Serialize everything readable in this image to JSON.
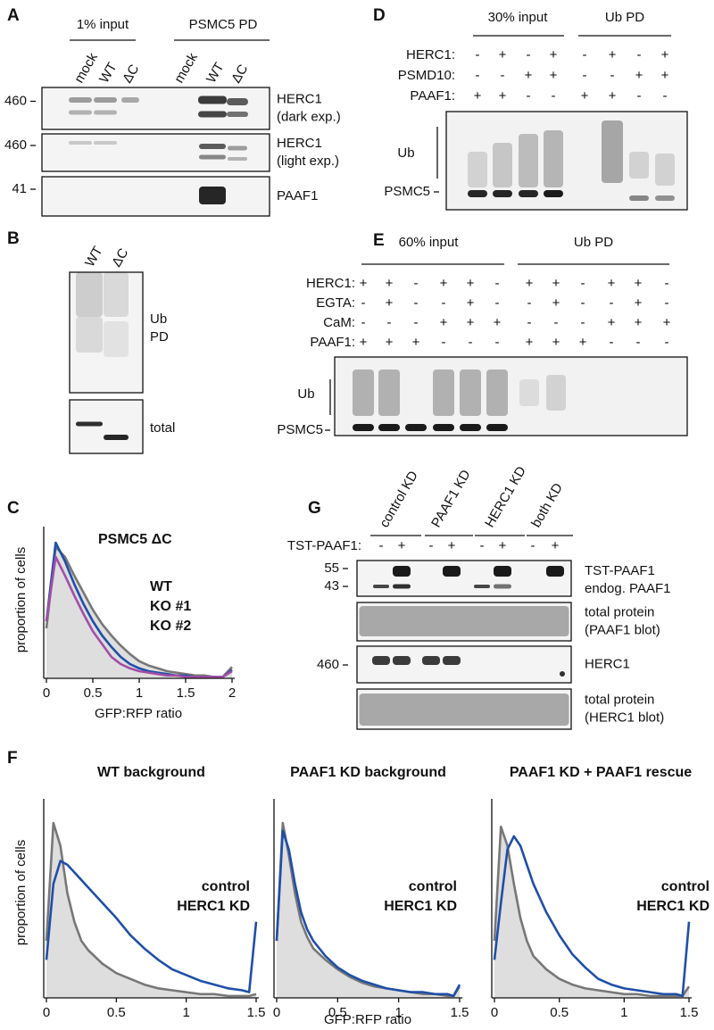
{
  "panels": {
    "A": {
      "letter": "A",
      "groups": [
        "1% input",
        "PSMC5 PD"
      ],
      "lanes": [
        "mock",
        "WT",
        "ΔC",
        "mock",
        "WT",
        "ΔC"
      ],
      "blots": [
        {
          "marker": "460",
          "label": [
            "HERC1",
            "(dark exp.)"
          ]
        },
        {
          "marker": "460",
          "label": [
            "HERC1",
            "(light exp.)"
          ]
        },
        {
          "marker": "41",
          "label": [
            "PAAF1"
          ]
        }
      ]
    },
    "B": {
      "letter": "B",
      "lanes": [
        "WT",
        "ΔC"
      ],
      "blots": [
        {
          "label": [
            "Ub",
            "PD"
          ]
        },
        {
          "label": [
            "total"
          ]
        }
      ]
    },
    "D": {
      "letter": "D",
      "groups": [
        "30% input",
        "Ub PD"
      ],
      "rows": [
        {
          "label": "HERC1:",
          "signs": [
            "-",
            "+",
            "-",
            "+",
            "-",
            "+",
            "-",
            "+"
          ]
        },
        {
          "label": "PSMD10:",
          "signs": [
            "-",
            "-",
            "+",
            "+",
            "-",
            "-",
            "+",
            "+"
          ]
        },
        {
          "label": "PAAF1:",
          "signs": [
            "+",
            "+",
            "-",
            "-",
            "+",
            "+",
            "-",
            "-"
          ]
        }
      ],
      "bands": [
        "Ub",
        "PSMC5"
      ]
    },
    "E": {
      "letter": "E",
      "groups": [
        "60% input",
        "Ub PD"
      ],
      "rows": [
        {
          "label": "HERC1:",
          "signs": [
            "+",
            "+",
            "-",
            "+",
            "+",
            "-",
            "+",
            "+",
            "-",
            "+",
            "+",
            "-"
          ]
        },
        {
          "label": "EGTA:",
          "signs": [
            "-",
            "+",
            "-",
            "-",
            "+",
            "-",
            "-",
            "+",
            "-",
            "-",
            "+",
            "-"
          ]
        },
        {
          "label": "CaM:",
          "signs": [
            "-",
            "-",
            "-",
            "+",
            "+",
            "+",
            "-",
            "-",
            "-",
            "+",
            "+",
            "+"
          ]
        },
        {
          "label": "PAAF1:",
          "signs": [
            "+",
            "+",
            "+",
            "-",
            "-",
            "-",
            "+",
            "+",
            "+",
            "-",
            "-",
            "-"
          ]
        }
      ],
      "bands": [
        "Ub",
        "PSMC5"
      ]
    },
    "F": {
      "letter": "F",
      "y_label": "proportion of cells",
      "x_label": "GFP:RFP ratio"
    },
    "G": {
      "letter": "G",
      "groups": [
        "control KD",
        "PAAF1 KD",
        "HERC1 KD",
        "both KD"
      ],
      "rows": [
        {
          "label": "TST-PAAF1:",
          "signs": [
            "-",
            "+",
            "-",
            "+",
            "-",
            "+",
            "-",
            "+"
          ]
        }
      ],
      "blots": [
        {
          "markers": [
            "55",
            "43"
          ],
          "label": [
            "TST-PAAF1",
            "endog. PAAF1"
          ]
        },
        {
          "markers": [],
          "label": [
            "total protein",
            "(PAAF1 blot)"
          ]
        },
        {
          "markers": [
            "460"
          ],
          "label": [
            "HERC1"
          ]
        },
        {
          "markers": [],
          "label": [
            "total protein",
            "(HERC1 blot)"
          ]
        }
      ]
    }
  },
  "chart_data": [
    {
      "type": "histogram-line",
      "letter": "C",
      "title": "PSMC5 ΔC",
      "x_label": "GFP:RFP ratio",
      "y_label": "proportion of cells",
      "x": [
        0,
        0.1,
        0.2,
        0.3,
        0.4,
        0.5,
        0.6,
        0.7,
        0.8,
        0.9,
        1.0,
        1.1,
        1.2,
        1.3,
        1.4,
        1.5,
        1.6,
        1.7,
        1.8,
        1.9,
        2
      ],
      "xlim": [
        0,
        2
      ],
      "ylim": [
        0,
        1
      ],
      "xticks": [
        0,
        0.5,
        1,
        1.5,
        2
      ],
      "series": [
        {
          "name": "WT",
          "color": "#777777",
          "fill": "#dedede",
          "values": [
            0.35,
            0.92,
            0.85,
            0.72,
            0.6,
            0.48,
            0.38,
            0.3,
            0.23,
            0.17,
            0.12,
            0.09,
            0.07,
            0.05,
            0.04,
            0.03,
            0.02,
            0.02,
            0.01,
            0.01,
            0.08
          ]
        },
        {
          "name": "KO #1",
          "color": "#1f4fa8",
          "values": [
            0.4,
            0.95,
            0.82,
            0.66,
            0.52,
            0.4,
            0.3,
            0.22,
            0.15,
            0.1,
            0.07,
            0.05,
            0.04,
            0.03,
            0.02,
            0.02,
            0.01,
            0.01,
            0.01,
            0.01,
            0.06
          ]
        },
        {
          "name": "KO #2",
          "color": "#a24ea6",
          "values": [
            0.4,
            0.85,
            0.72,
            0.58,
            0.45,
            0.33,
            0.24,
            0.15,
            0.1,
            0.07,
            0.05,
            0.04,
            0.03,
            0.02,
            0.02,
            0.01,
            0.01,
            0.01,
            0.01,
            0.01,
            0.05
          ]
        }
      ]
    },
    {
      "type": "histogram-line",
      "title": "WT background",
      "x": [
        0,
        0.05,
        0.1,
        0.15,
        0.2,
        0.25,
        0.3,
        0.4,
        0.5,
        0.6,
        0.7,
        0.8,
        0.9,
        1.0,
        1.1,
        1.2,
        1.3,
        1.4,
        1.45,
        1.5
      ],
      "xlim": [
        0,
        1.5
      ],
      "ylim": [
        0,
        1
      ],
      "xticks": [
        0,
        0.5,
        1,
        1.5
      ],
      "series": [
        {
          "name": "control",
          "color": "#777777",
          "fill": "#dedede",
          "values": [
            0.3,
            0.92,
            0.8,
            0.55,
            0.4,
            0.3,
            0.25,
            0.18,
            0.13,
            0.1,
            0.07,
            0.05,
            0.04,
            0.03,
            0.02,
            0.02,
            0.01,
            0.01,
            0.01,
            0.02
          ]
        },
        {
          "name": "HERC1 KD",
          "color": "#1f4fa8",
          "values": [
            0.2,
            0.6,
            0.72,
            0.7,
            0.66,
            0.62,
            0.58,
            0.5,
            0.42,
            0.33,
            0.26,
            0.2,
            0.15,
            0.12,
            0.09,
            0.07,
            0.05,
            0.04,
            0.03,
            0.4
          ]
        }
      ]
    },
    {
      "type": "histogram-line",
      "title": "PAAF1 KD background",
      "x": [
        0,
        0.05,
        0.1,
        0.15,
        0.2,
        0.25,
        0.3,
        0.4,
        0.5,
        0.6,
        0.7,
        0.8,
        0.9,
        1.0,
        1.1,
        1.2,
        1.3,
        1.4,
        1.45,
        1.5
      ],
      "xlim": [
        0,
        1.5
      ],
      "ylim": [
        0,
        1
      ],
      "xticks": [
        0,
        0.5,
        1,
        1.5
      ],
      "series": [
        {
          "name": "control",
          "color": "#777777",
          "fill": "#dedede",
          "values": [
            0.3,
            0.92,
            0.75,
            0.55,
            0.4,
            0.32,
            0.26,
            0.2,
            0.15,
            0.11,
            0.08,
            0.06,
            0.05,
            0.04,
            0.03,
            0.02,
            0.02,
            0.01,
            0.01,
            0.06
          ]
        },
        {
          "name": "HERC1 KD",
          "color": "#1f4fa8",
          "values": [
            0.3,
            0.88,
            0.78,
            0.6,
            0.45,
            0.36,
            0.3,
            0.22,
            0.16,
            0.12,
            0.09,
            0.07,
            0.05,
            0.04,
            0.03,
            0.03,
            0.02,
            0.02,
            0.01,
            0.07
          ]
        }
      ]
    },
    {
      "type": "histogram-line",
      "title": "PAAF1 KD + PAAF1 rescue",
      "x": [
        0,
        0.05,
        0.1,
        0.15,
        0.2,
        0.25,
        0.3,
        0.4,
        0.5,
        0.6,
        0.7,
        0.8,
        0.9,
        1.0,
        1.1,
        1.2,
        1.3,
        1.4,
        1.45,
        1.5
      ],
      "xlim": [
        0,
        1.5
      ],
      "ylim": [
        0,
        1
      ],
      "xticks": [
        0,
        0.5,
        1,
        1.5
      ],
      "series": [
        {
          "name": "control",
          "color": "#777777",
          "fill": "#dedede",
          "values": [
            0.3,
            0.9,
            0.8,
            0.6,
            0.42,
            0.3,
            0.22,
            0.15,
            0.1,
            0.07,
            0.05,
            0.04,
            0.03,
            0.02,
            0.02,
            0.01,
            0.01,
            0.01,
            0.01,
            0.06
          ]
        },
        {
          "name": "HERC1 KD",
          "color": "#1f4fa8",
          "values": [
            0.2,
            0.5,
            0.78,
            0.85,
            0.8,
            0.7,
            0.6,
            0.45,
            0.33,
            0.23,
            0.16,
            0.1,
            0.07,
            0.05,
            0.04,
            0.03,
            0.02,
            0.02,
            0.01,
            0.4
          ]
        }
      ]
    }
  ]
}
